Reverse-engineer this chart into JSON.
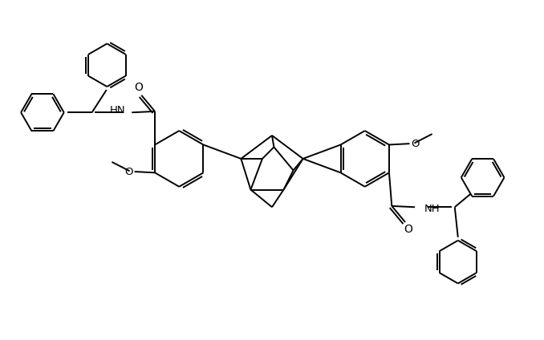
{
  "background_color": "#ffffff",
  "line_color": "#000000",
  "lw": 1.4,
  "fig_width": 6.78,
  "fig_height": 4.24,
  "dpi": 100,
  "xlim": [
    0,
    10
  ],
  "ylim": [
    0,
    6.24
  ]
}
